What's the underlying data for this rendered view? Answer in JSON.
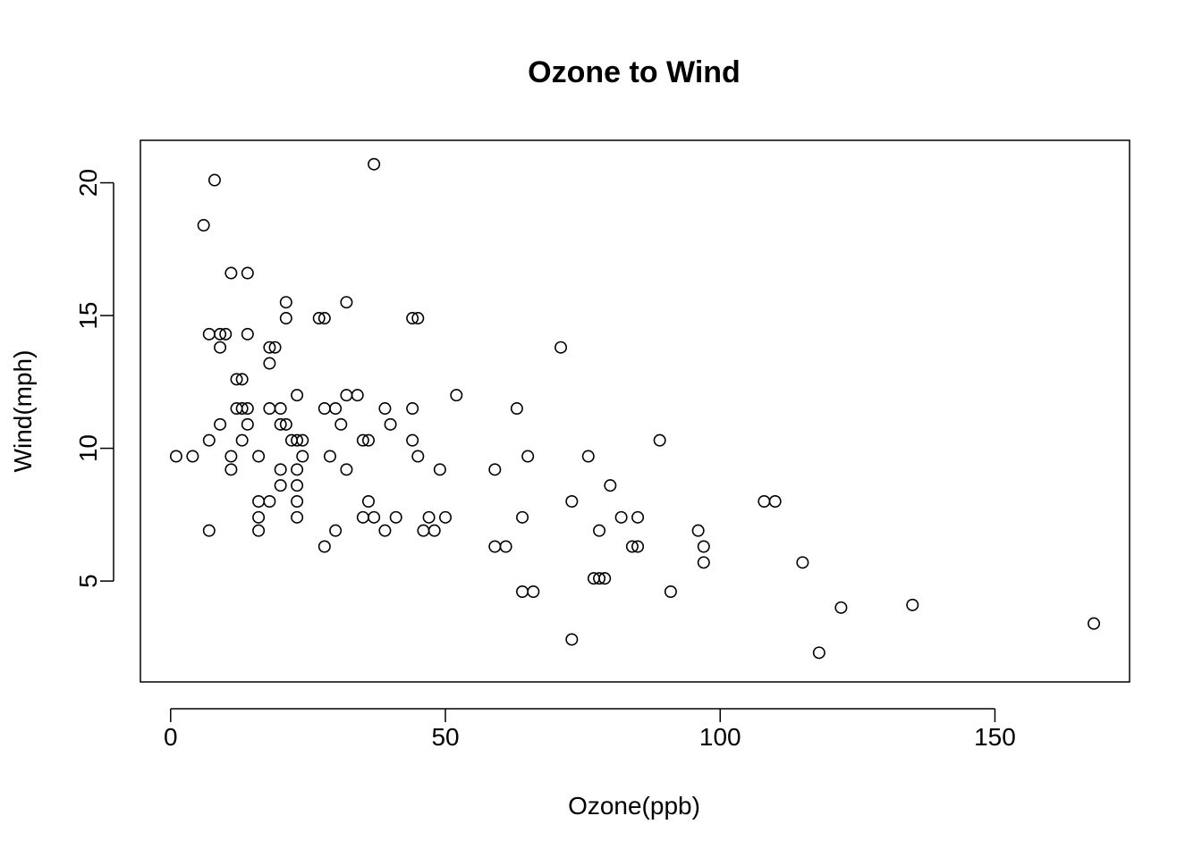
{
  "chart_data": {
    "type": "scatter",
    "title": "Ozone to Wind",
    "xlabel": "Ozone(ppb)",
    "ylabel": "Wind(mph)",
    "xlim": [
      -5.5,
      174.5
    ],
    "ylim": [
      1.2,
      21.6
    ],
    "xticks": [
      0,
      50,
      100,
      150
    ],
    "yticks": [
      5,
      10,
      15,
      20
    ],
    "grid": false,
    "legend": false,
    "marker": "open-circle",
    "points": [
      [
        1,
        9.7
      ],
      [
        4,
        9.7
      ],
      [
        6,
        18.4
      ],
      [
        7,
        14.3
      ],
      [
        7,
        10.3
      ],
      [
        7,
        6.9
      ],
      [
        8,
        20.1
      ],
      [
        9,
        14.3
      ],
      [
        9,
        13.8
      ],
      [
        9,
        10.9
      ],
      [
        10,
        14.3
      ],
      [
        11,
        16.6
      ],
      [
        11,
        9.7
      ],
      [
        11,
        9.2
      ],
      [
        12,
        12.6
      ],
      [
        12,
        11.5
      ],
      [
        13,
        12.6
      ],
      [
        13,
        11.5
      ],
      [
        13,
        10.3
      ],
      [
        14,
        16.6
      ],
      [
        14,
        14.3
      ],
      [
        14,
        11.5
      ],
      [
        14,
        10.9
      ],
      [
        16,
        9.7
      ],
      [
        16,
        8.0
      ],
      [
        16,
        7.4
      ],
      [
        16,
        6.9
      ],
      [
        18,
        13.8
      ],
      [
        18,
        13.2
      ],
      [
        18,
        11.5
      ],
      [
        18,
        8.0
      ],
      [
        19,
        13.8
      ],
      [
        20,
        11.5
      ],
      [
        20,
        10.9
      ],
      [
        20,
        9.2
      ],
      [
        20,
        8.6
      ],
      [
        21,
        15.5
      ],
      [
        21,
        14.9
      ],
      [
        21,
        10.9
      ],
      [
        22,
        10.3
      ],
      [
        23,
        12.0
      ],
      [
        23,
        10.3
      ],
      [
        23,
        9.2
      ],
      [
        23,
        8.6
      ],
      [
        23,
        8.0
      ],
      [
        23,
        7.4
      ],
      [
        24,
        10.3
      ],
      [
        24,
        9.7
      ],
      [
        27,
        14.9
      ],
      [
        28,
        14.9
      ],
      [
        28,
        11.5
      ],
      [
        28,
        6.3
      ],
      [
        29,
        9.7
      ],
      [
        30,
        11.5
      ],
      [
        30,
        6.9
      ],
      [
        31,
        10.9
      ],
      [
        32,
        15.5
      ],
      [
        32,
        12.0
      ],
      [
        32,
        9.2
      ],
      [
        34,
        12.0
      ],
      [
        35,
        10.3
      ],
      [
        35,
        7.4
      ],
      [
        36,
        10.3
      ],
      [
        36,
        8.0
      ],
      [
        37,
        20.7
      ],
      [
        37,
        7.4
      ],
      [
        39,
        11.5
      ],
      [
        39,
        6.9
      ],
      [
        40,
        10.9
      ],
      [
        41,
        7.4
      ],
      [
        44,
        14.9
      ],
      [
        44,
        11.5
      ],
      [
        44,
        10.3
      ],
      [
        45,
        14.9
      ],
      [
        45,
        9.7
      ],
      [
        46,
        6.9
      ],
      [
        47,
        7.4
      ],
      [
        48,
        6.9
      ],
      [
        49,
        9.2
      ],
      [
        50,
        7.4
      ],
      [
        52,
        12.0
      ],
      [
        59,
        9.2
      ],
      [
        59,
        6.3
      ],
      [
        61,
        6.3
      ],
      [
        63,
        11.5
      ],
      [
        64,
        7.4
      ],
      [
        64,
        4.6
      ],
      [
        65,
        9.7
      ],
      [
        66,
        4.6
      ],
      [
        71,
        13.8
      ],
      [
        73,
        8.0
      ],
      [
        73,
        2.8
      ],
      [
        76,
        9.7
      ],
      [
        77,
        5.1
      ],
      [
        78,
        6.9
      ],
      [
        78,
        5.1
      ],
      [
        79,
        5.1
      ],
      [
        80,
        8.6
      ],
      [
        82,
        7.4
      ],
      [
        84,
        6.3
      ],
      [
        85,
        7.4
      ],
      [
        85,
        6.3
      ],
      [
        89,
        10.3
      ],
      [
        91,
        4.6
      ],
      [
        96,
        6.9
      ],
      [
        97,
        6.3
      ],
      [
        97,
        5.7
      ],
      [
        108,
        8.0
      ],
      [
        110,
        8.0
      ],
      [
        115,
        5.7
      ],
      [
        118,
        2.3
      ],
      [
        122,
        4.0
      ],
      [
        135,
        4.1
      ],
      [
        168,
        3.4
      ]
    ]
  }
}
